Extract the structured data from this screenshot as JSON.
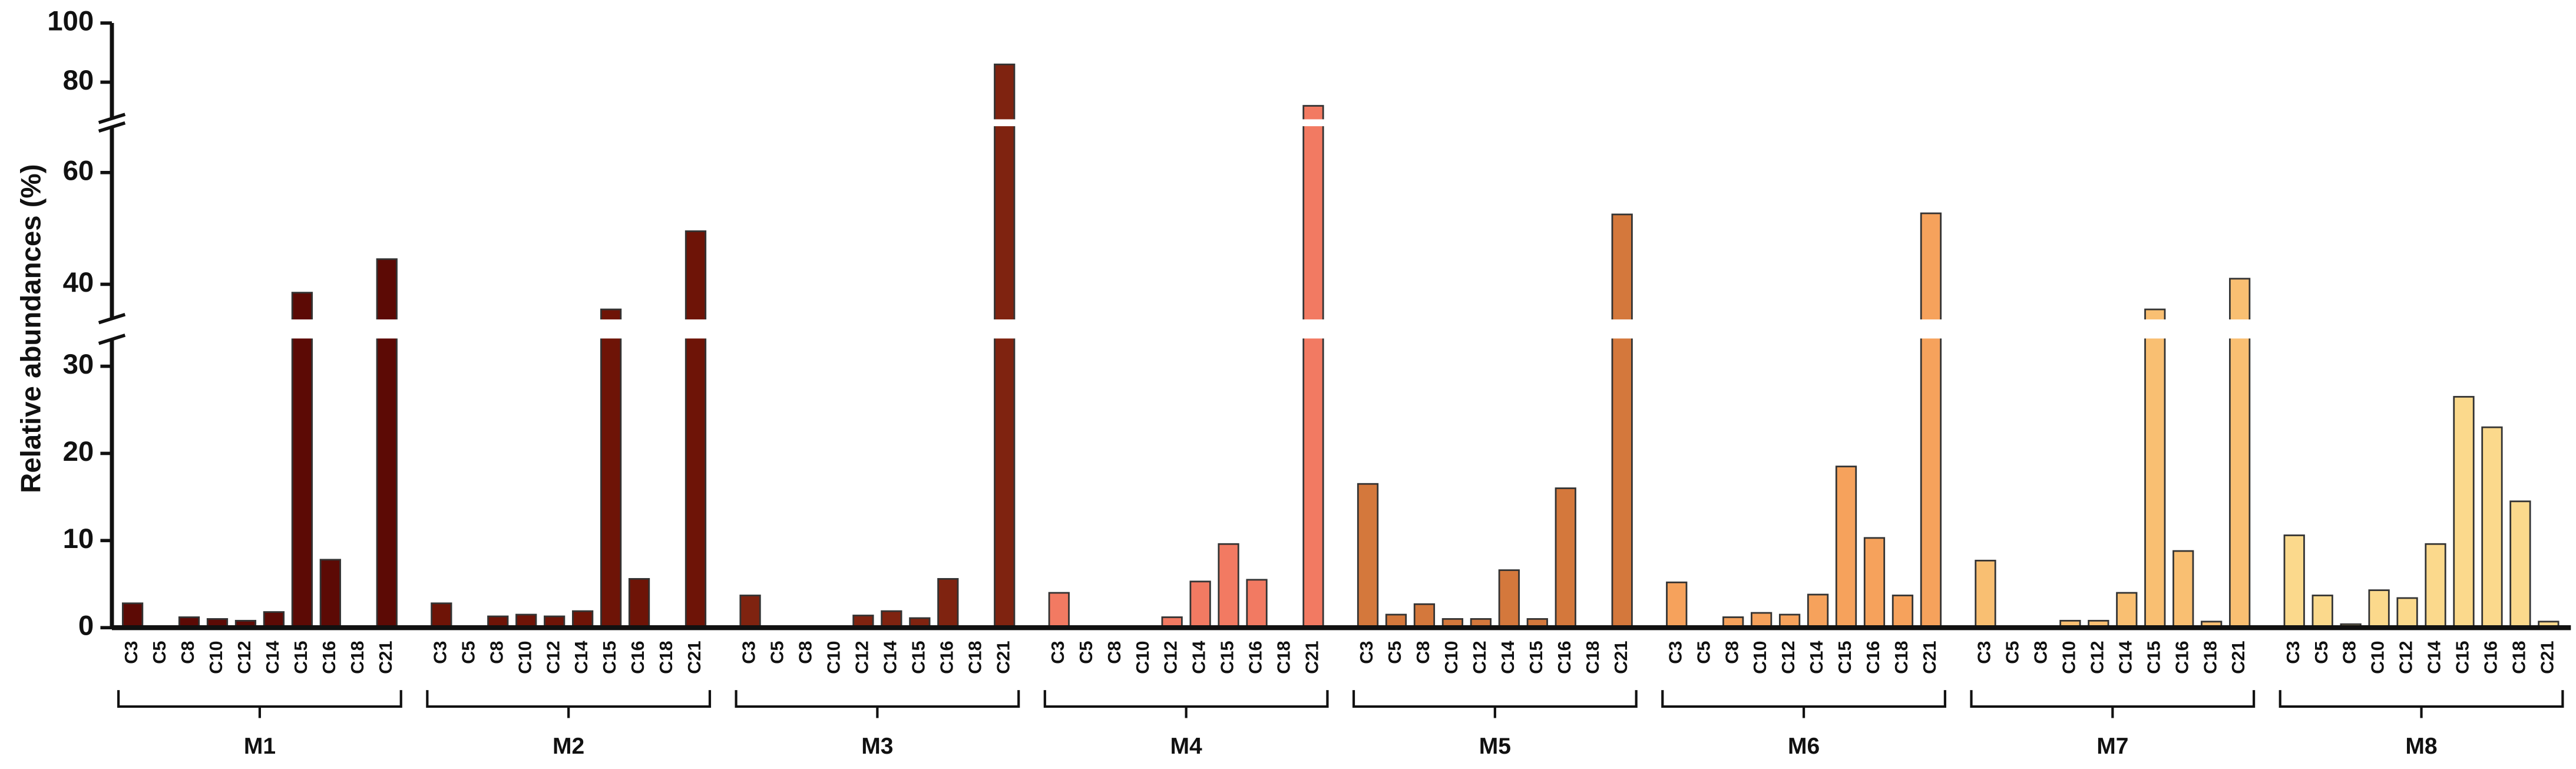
{
  "chart_data": {
    "type": "broken-axis-grouped-bar",
    "y_label": "Relative abundances (%)",
    "y_segments": [
      {
        "ylim": [
          0,
          33
        ],
        "yticks": [
          0,
          10,
          20,
          30
        ]
      },
      {
        "ylim": [
          34,
          68
        ],
        "yticks": [
          40,
          60
        ]
      },
      {
        "ylim": [
          68,
          100
        ],
        "yticks": [
          80,
          100
        ]
      }
    ],
    "categories": [
      "C3",
      "C5",
      "C8",
      "C10",
      "C12",
      "C14",
      "C15",
      "C16",
      "C18",
      "C21"
    ],
    "series": [
      {
        "name": "M1",
        "color": "#5c0a05",
        "values": [
          2.8,
          0,
          1.2,
          1.0,
          0.8,
          1.8,
          38.5,
          7.8,
          0,
          44.5
        ]
      },
      {
        "name": "M2",
        "color": "#6e1407",
        "values": [
          2.8,
          0,
          1.3,
          1.5,
          1.3,
          1.9,
          35.5,
          5.6,
          0,
          49.5
        ]
      },
      {
        "name": "M3",
        "color": "#7f2310",
        "values": [
          3.7,
          0,
          0,
          0,
          1.4,
          1.9,
          1.1,
          5.6,
          0,
          86
        ]
      },
      {
        "name": "M4",
        "color": "#f27a62",
        "values": [
          4.0,
          0,
          0,
          0,
          1.2,
          5.3,
          9.6,
          5.5,
          0,
          72
        ]
      },
      {
        "name": "M5",
        "color": "#d4783c",
        "values": [
          16.5,
          1.5,
          2.7,
          1.0,
          1.0,
          6.6,
          1.0,
          16.0,
          0,
          52.5
        ]
      },
      {
        "name": "M6",
        "color": "#f6a25c",
        "values": [
          5.2,
          0,
          1.2,
          1.7,
          1.5,
          3.8,
          18.5,
          10.3,
          3.7,
          52.7
        ]
      },
      {
        "name": "M7",
        "color": "#f9bf72",
        "values": [
          7.7,
          0,
          0,
          0.8,
          0.8,
          4.0,
          35.5,
          8.8,
          0.7,
          41
        ]
      },
      {
        "name": "M8",
        "color": "#fbd98c",
        "values": [
          10.6,
          3.7,
          0.4,
          4.3,
          3.4,
          9.6,
          26.5,
          23.0,
          14.5,
          0.7
        ]
      }
    ]
  }
}
